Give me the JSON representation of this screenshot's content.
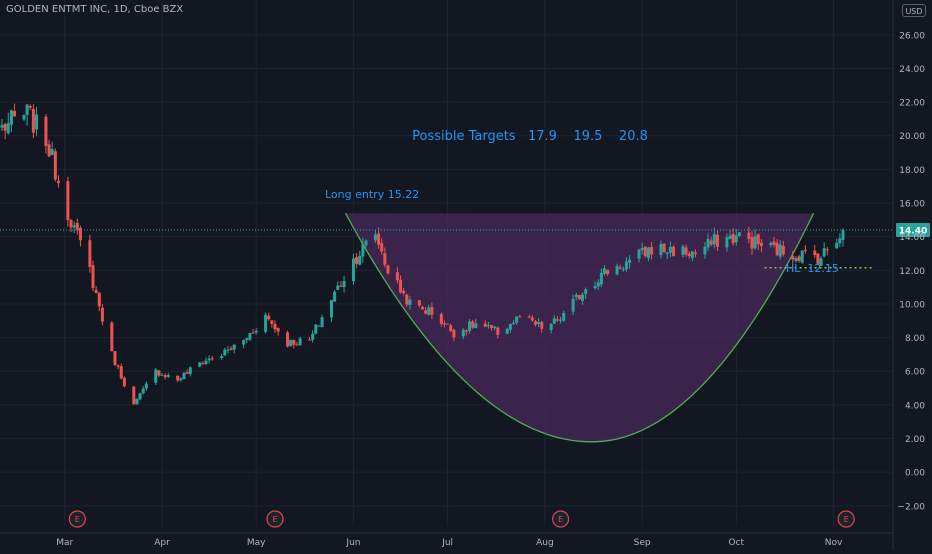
{
  "header": {
    "symbol": "GOLDEN ENTMT INC, 1D, Cboe BZX",
    "currency": "USD"
  },
  "price_tag": {
    "value": "14.40",
    "color": "#26a69a"
  },
  "annotations": {
    "targets": "Possible Targets   17.9    19.5    20.8",
    "long_entry": "Long entry 15.22",
    "hl": "HL  12.15"
  },
  "earnings_marker": "E",
  "colors": {
    "background": "#131722",
    "up": "#26a69a",
    "down": "#ef5350",
    "text": "#b2b5be",
    "annotation": "#2196f3",
    "cup_fill": "#4a2a5a",
    "cup_line": "#4caf50",
    "earnings": "#e0454f"
  },
  "chart_data": {
    "type": "candlestick",
    "title": "GOLDEN ENTMT INC, 1D, Cboe BZX",
    "currency": "USD",
    "y_ticks": [
      "26.00",
      "24.00",
      "22.00",
      "20.00",
      "18.00",
      "16.00",
      "14.00",
      "12.00",
      "10.00",
      "8.00",
      "6.00",
      "4.00",
      "2.00",
      "0.00",
      "−2.00"
    ],
    "ylim": [
      -3.2,
      27
    ],
    "x_labels": [
      {
        "label": "Mar",
        "date": "2020-03-01"
      },
      {
        "label": "Apr",
        "date": "2020-04-01"
      },
      {
        "label": "May",
        "date": "2020-05-01"
      },
      {
        "label": "Jun",
        "date": "2020-06-01"
      },
      {
        "label": "Jul",
        "date": "2020-07-01"
      },
      {
        "label": "Aug",
        "date": "2020-08-01"
      },
      {
        "label": "Sep",
        "date": "2020-09-01"
      },
      {
        "label": "Oct",
        "date": "2020-10-01"
      },
      {
        "label": "Nov",
        "date": "2020-11-01"
      }
    ],
    "earnings_dates": [
      "2020-03-05",
      "2020-05-07",
      "2020-08-06",
      "2020-11-05"
    ],
    "last_price": 14.4,
    "long_entry": 15.22,
    "higher_low": 12.15,
    "targets": [
      17.9,
      19.5,
      20.8
    ],
    "anchors": [
      [
        "2020-02-10",
        20.5
      ],
      [
        "2020-02-18",
        21.3
      ],
      [
        "2020-02-24",
        19.8
      ],
      [
        "2020-03-02",
        15.5
      ],
      [
        "2020-03-09",
        12.0
      ],
      [
        "2020-03-16",
        7.0
      ],
      [
        "2020-03-23",
        4.0
      ],
      [
        "2020-03-30",
        6.0
      ],
      [
        "2020-04-06",
        5.5
      ],
      [
        "2020-04-13",
        6.5
      ],
      [
        "2020-04-20",
        7.0
      ],
      [
        "2020-04-27",
        7.8
      ],
      [
        "2020-05-04",
        9.3
      ],
      [
        "2020-05-11",
        7.7
      ],
      [
        "2020-05-18",
        7.8
      ],
      [
        "2020-05-25",
        10.3
      ],
      [
        "2020-06-01",
        12.6
      ],
      [
        "2020-06-08",
        14.2
      ],
      [
        "2020-06-12",
        12.0
      ],
      [
        "2020-06-19",
        10.0
      ],
      [
        "2020-06-26",
        9.5
      ],
      [
        "2020-07-03",
        8.3
      ],
      [
        "2020-07-10",
        8.8
      ],
      [
        "2020-07-17",
        8.3
      ],
      [
        "2020-07-24",
        9.2
      ],
      [
        "2020-08-01",
        8.5
      ],
      [
        "2020-08-07",
        9.3
      ],
      [
        "2020-08-14",
        11.0
      ],
      [
        "2020-08-21",
        12.0
      ],
      [
        "2020-08-28",
        12.5
      ],
      [
        "2020-09-04",
        13.3
      ],
      [
        "2020-09-11",
        13.2
      ],
      [
        "2020-09-18",
        13.0
      ],
      [
        "2020-09-25",
        13.8
      ],
      [
        "2020-10-02",
        14.0
      ],
      [
        "2020-10-09",
        13.5
      ],
      [
        "2020-10-16",
        13.1
      ],
      [
        "2020-10-23",
        12.9
      ],
      [
        "2020-10-28",
        12.8
      ],
      [
        "2020-11-04",
        14.4
      ]
    ]
  }
}
